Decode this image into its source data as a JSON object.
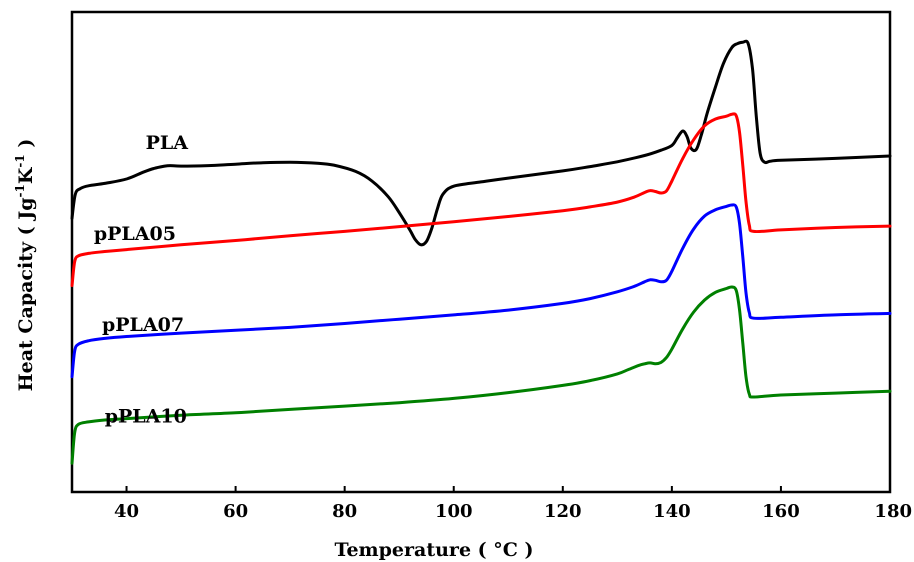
{
  "chart_data": {
    "type": "line",
    "title": "",
    "xlabel": "Temperature ( °C )",
    "ylabel": "Heat Capacity ( Jg-1K-1 )",
    "ylabel_parts": {
      "prefix": "Heat Capacity ( Jg",
      "sup1": "-1",
      "mid": "K",
      "sup2": "-1",
      "suffix": " )"
    },
    "xlim": [
      30,
      180
    ],
    "ylim": [
      0,
      100
    ],
    "y_ticks_shown": false,
    "x_ticks": [
      40,
      60,
      80,
      100,
      120,
      140,
      160,
      180
    ],
    "grid": false,
    "legend": "inline labels",
    "series": [
      {
        "name": "PLA",
        "color": "#000000",
        "label_at": [
          43.5,
          71.5
        ],
        "x": [
          30,
          30.6,
          31.5,
          33,
          36,
          40,
          43,
          45,
          47,
          48,
          50,
          55,
          60,
          65,
          70,
          75,
          78,
          82,
          85,
          88,
          90,
          92,
          93,
          94,
          95,
          96,
          97,
          98,
          100,
          105,
          110,
          120,
          125,
          130,
          135,
          138,
          140,
          141,
          142,
          142.8,
          143.5,
          144.5,
          145.5,
          146.5,
          148,
          149.5,
          151,
          152,
          153,
          154,
          154.8,
          155.5,
          156.2,
          157,
          158,
          160,
          170,
          180
        ],
        "y": [
          57,
          62,
          63.2,
          63.8,
          64.3,
          65.2,
          66.6,
          67.4,
          67.9,
          68,
          67.9,
          68,
          68.3,
          68.6,
          68.7,
          68.5,
          68.1,
          66.8,
          64.8,
          61.5,
          58.2,
          54.5,
          52.5,
          51.5,
          52.2,
          55,
          59,
          62,
          63.7,
          64.6,
          65.4,
          66.9,
          67.8,
          68.8,
          70.1,
          71.2,
          72.2,
          73.8,
          75.2,
          74,
          71.6,
          71.4,
          74.8,
          79,
          84.4,
          89.4,
          92.6,
          93.4,
          93.7,
          93.4,
          88,
          78,
          70.5,
          68.7,
          68.9,
          69.1,
          69.5,
          70
        ]
      },
      {
        "name": "pPLA05",
        "color": "#ff0000",
        "label_at": [
          34,
          52.5
        ],
        "x": [
          30,
          30.5,
          31.2,
          33,
          36,
          40,
          50,
          60,
          70,
          80,
          90,
          100,
          110,
          120,
          125,
          130,
          133,
          135,
          136,
          137,
          138,
          139,
          140,
          142,
          144,
          146,
          148,
          150,
          151,
          151.8,
          152.4,
          153,
          153.6,
          154.2,
          155,
          160,
          170,
          180
        ],
        "y": [
          43,
          48,
          49.2,
          49.7,
          50.1,
          50.5,
          51.5,
          52.4,
          53.4,
          54.3,
          55.3,
          56.3,
          57.4,
          58.6,
          59.4,
          60.4,
          61.4,
          62.4,
          62.8,
          62.6,
          62.3,
          62.7,
          64.8,
          69.5,
          73.4,
          76.3,
          77.7,
          78.3,
          78.7,
          78.4,
          75,
          68,
          60.5,
          55.6,
          54.3,
          54.6,
          55.1,
          55.4
        ]
      },
      {
        "name": "pPLA07",
        "color": "#0000ff",
        "label_at": [
          35.5,
          33.5
        ],
        "x": [
          30,
          30.5,
          31.2,
          33,
          36,
          40,
          50,
          60,
          70,
          80,
          90,
          100,
          110,
          120,
          125,
          130,
          133,
          135,
          136,
          137,
          138,
          139,
          140,
          142,
          144,
          146,
          148,
          150,
          151,
          151.8,
          152.4,
          153,
          153.6,
          154.2,
          155,
          160,
          170,
          180
        ],
        "y": [
          24,
          29.4,
          30.8,
          31.5,
          32,
          32.4,
          33.1,
          33.7,
          34.3,
          35.1,
          36,
          36.9,
          37.9,
          39.3,
          40.3,
          41.7,
          42.8,
          43.8,
          44.2,
          44.1,
          43.8,
          44.1,
          46,
          50.8,
          54.8,
          57.5,
          58.8,
          59.5,
          59.8,
          59.4,
          56,
          49,
          41.5,
          37.4,
          36.2,
          36.4,
          36.9,
          37.2
        ]
      },
      {
        "name": "pPLA10",
        "color": "#008000",
        "label_at": [
          36,
          14.5
        ],
        "x": [
          30,
          30.5,
          31.2,
          33,
          36,
          40,
          50,
          60,
          70,
          80,
          90,
          100,
          110,
          120,
          125,
          130,
          132,
          134,
          135,
          136,
          137,
          138,
          139,
          140,
          142,
          144,
          146,
          148,
          150,
          151,
          151.8,
          152.4,
          153,
          153.6,
          154.2,
          155,
          160,
          170,
          180
        ],
        "y": [
          6,
          12.4,
          14.1,
          14.6,
          15,
          15.3,
          16,
          16.5,
          17.2,
          17.9,
          18.6,
          19.5,
          20.7,
          22.2,
          23.2,
          24.6,
          25.5,
          26.4,
          26.7,
          26.9,
          26.7,
          27,
          28,
          29.8,
          34,
          37.5,
          40,
          41.6,
          42.4,
          42.7,
          42,
          38,
          31,
          24,
          20.4,
          19.8,
          20.2,
          20.6,
          21
        ]
      }
    ]
  }
}
